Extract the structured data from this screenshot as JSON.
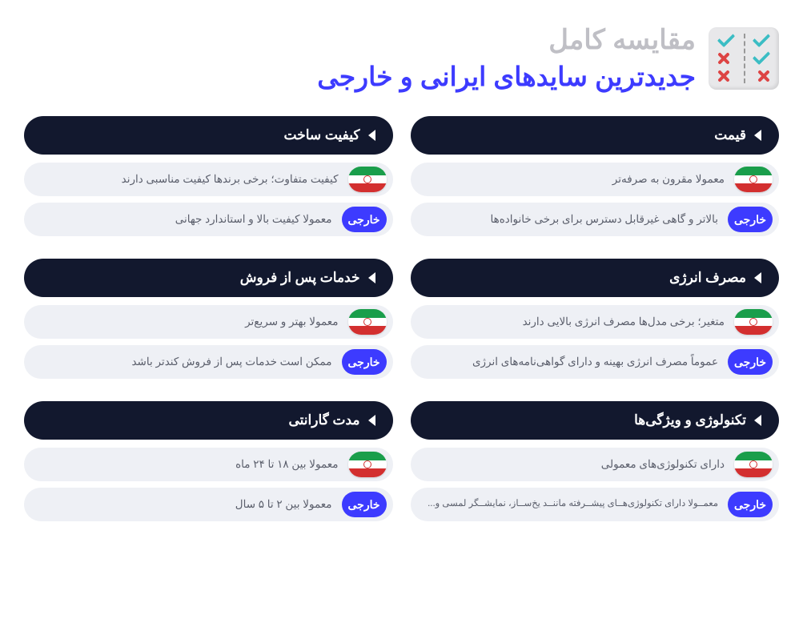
{
  "colors": {
    "title_gray": "#bfbfc5",
    "title_blue": "#3d3bff",
    "header_bg": "#12182e",
    "row_bg": "#eef0f5",
    "row_text": "#5a5e6b",
    "foreign_badge": "#3d3bff",
    "iran_green": "#1a9e4b",
    "iran_red": "#d32f2f",
    "check_teal": "#3bbdc4",
    "cross_red": "#d44"
  },
  "header": {
    "title_line1": "مقایسه کامل",
    "title_line2": "جدیدترین سایدهای ایرانی و خارجی"
  },
  "foreign_label": "خارجی",
  "cards": [
    {
      "title": "قیمت",
      "iranian": "معمولا مقرون به صرفه‌تر",
      "foreign": "بالاتر و گاهی غیرقابل دسترس برای برخی خانواده‌ها"
    },
    {
      "title": "کیفیت ساخت",
      "iranian": "کیفیت متفاوت؛ برخی برندها کیفیت مناسبی دارند",
      "foreign": "معمولا کیفیت بالا و استاندارد جهانی"
    },
    {
      "title": "مصرف انرژی",
      "iranian": "متغیر؛ برخی مدل‌ها مصرف انرژی بالایی دارند",
      "foreign": "عموماً مصرف انرژی بهینه و دارای گواهی‌نامه‌های انرژی"
    },
    {
      "title": "خدمات پس از فروش",
      "iranian": "معمولا بهتر و سریع‌تر",
      "foreign": "ممکن است خدمات پس از فروش کندتر باشد"
    },
    {
      "title": "تکنولوژی و ویژگی‌ها",
      "iranian": "دارای تکنولوژی‌های معمولی",
      "foreign": "معمــولا دارای تکنولوژی‌هــای پیشــرفته ماننــد یخ‌ســاز، نمایشــگر لمسی و...",
      "foreign_small": true
    },
    {
      "title": "مدت گارانتی",
      "iranian": "معمولا بین ۱۸ تا ۲۴ ماه",
      "foreign": "معمولا بین ۲ تا ۵ سال"
    }
  ]
}
